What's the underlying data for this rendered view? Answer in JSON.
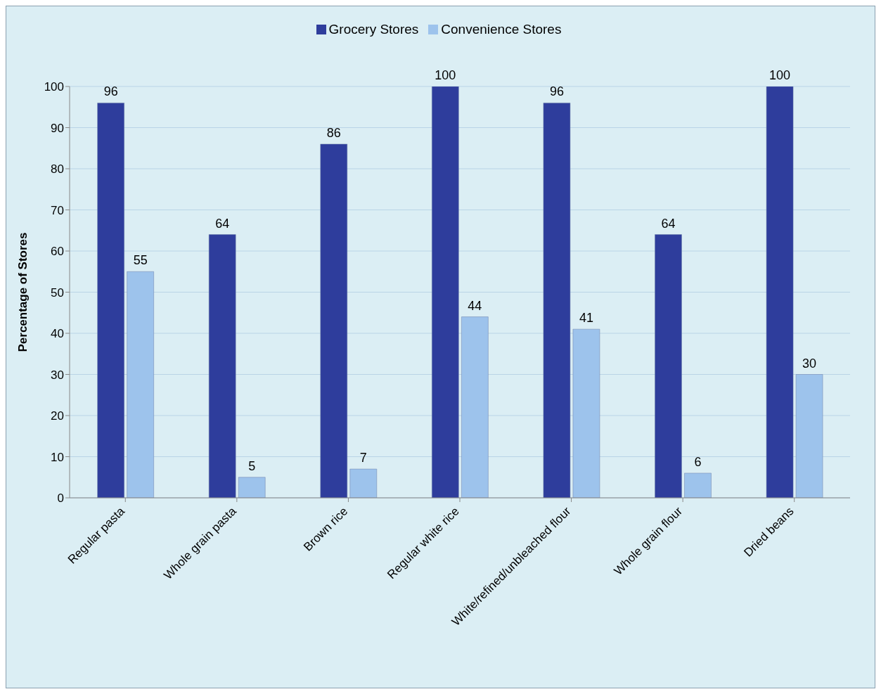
{
  "chart_data": {
    "type": "bar",
    "ylabel": "Percentage of Stores",
    "categories": [
      "Regular pasta",
      "Whole grain pasta",
      "Brown rice",
      "Regular white rice",
      "White/refined/unbleached flour",
      "Whole grain flour",
      "Dried beans"
    ],
    "series": [
      {
        "name": "Grocery Stores",
        "color": "#2e3d9c",
        "values": [
          96,
          64,
          86,
          100,
          96,
          64,
          100
        ]
      },
      {
        "name": "Convenience Stores",
        "color": "#9dc3ec",
        "values": [
          55,
          5,
          7,
          44,
          41,
          6,
          30
        ]
      }
    ],
    "ylim": [
      0,
      100
    ],
    "yticks": [
      0,
      10,
      20,
      30,
      40,
      50,
      60,
      70,
      80,
      90,
      100
    ],
    "grid": "y",
    "legend": "top",
    "data_labels": true
  }
}
